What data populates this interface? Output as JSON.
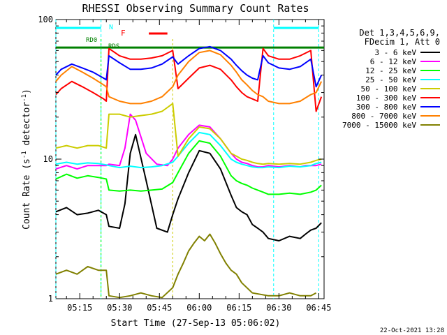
{
  "chart_data": {
    "type": "line",
    "title": "RHESSI Observing Summary Count Rates",
    "xlabel": "Start Time (27-Sep-13 05:06:02)",
    "ylabel": "Count Rate (s⁻¹ detector⁻¹)",
    "ylabel_parts": [
      "Count Rate (s",
      "-1",
      " detector",
      "-1",
      ")"
    ],
    "yscale": "log",
    "ylim": [
      1,
      100
    ],
    "y_ticks": [
      {
        "v": 1,
        "label": "1"
      },
      {
        "v": 10,
        "label": "10"
      },
      {
        "v": 100,
        "label": "100"
      }
    ],
    "x_ticks": [
      "05:15",
      "05:30",
      "05:45",
      "06:00",
      "06:15",
      "06:30",
      "06:45"
    ],
    "x_tick_minutes": [
      15,
      30,
      45,
      60,
      75,
      90,
      105
    ],
    "xlim_minutes": [
      6,
      107
    ],
    "grid": false,
    "legend_position": "right",
    "legend_header": [
      "Det 1,3,4,5,6,9,",
      "FDecim 1, Att 0"
    ],
    "series": [
      {
        "name": "3 - 6 keV",
        "color": "#000000",
        "x": [
          6,
          10,
          14,
          18,
          22,
          25,
          26,
          30,
          32,
          34,
          36,
          40,
          44,
          48,
          50,
          52,
          56,
          60,
          64,
          68,
          72,
          74,
          76,
          78,
          80,
          82,
          84,
          86,
          90,
          94,
          98,
          100,
          102,
          104,
          106
        ],
        "y": [
          4.2,
          4.5,
          4.0,
          4.1,
          4.3,
          4.0,
          3.3,
          3.2,
          4.8,
          11,
          15,
          7,
          3.2,
          3.0,
          4.0,
          5.2,
          8.0,
          11.5,
          11.0,
          8.5,
          5.5,
          4.5,
          4.2,
          4.0,
          3.4,
          3.2,
          3.0,
          2.7,
          2.6,
          2.8,
          2.7,
          2.9,
          3.1,
          3.2,
          3.5
        ]
      },
      {
        "name": "6 - 12 keV",
        "color": "#ff00ff",
        "x": [
          6,
          10,
          14,
          18,
          22,
          25,
          26,
          30,
          32,
          34,
          36,
          40,
          44,
          48,
          50,
          52,
          56,
          60,
          64,
          68,
          72,
          74,
          76,
          78,
          80,
          82,
          84,
          86,
          90,
          94,
          98,
          100,
          102,
          104,
          106
        ],
        "y": [
          8.5,
          9.0,
          8.5,
          9.0,
          9.0,
          9.0,
          9.2,
          9.0,
          12,
          21,
          19,
          11,
          9.2,
          9.0,
          10,
          12,
          15,
          17.5,
          17,
          14,
          11,
          10,
          9.5,
          9.3,
          9.0,
          8.8,
          8.8,
          9.0,
          8.8,
          9.0,
          8.8,
          9.0,
          9.0,
          9.0,
          9.2
        ]
      },
      {
        "name": "12 - 25 keV",
        "color": "#00ff00",
        "x": [
          6,
          10,
          14,
          18,
          22,
          25,
          26,
          30,
          34,
          38,
          42,
          46,
          50,
          52,
          56,
          60,
          64,
          68,
          72,
          74,
          76,
          78,
          80,
          82,
          84,
          86,
          90,
          94,
          98,
          102,
          104,
          106
        ],
        "y": [
          7.2,
          7.8,
          7.3,
          7.6,
          7.4,
          7.2,
          6.0,
          5.9,
          6.0,
          5.9,
          6.0,
          6.1,
          6.8,
          8.0,
          11,
          13.5,
          13,
          10.5,
          7.6,
          7.0,
          6.7,
          6.5,
          6.2,
          6.0,
          5.8,
          5.6,
          5.6,
          5.7,
          5.6,
          5.8,
          6.0,
          6.5
        ]
      },
      {
        "name": "25 - 50 keV",
        "color": "#00ffff",
        "x": [
          6,
          10,
          14,
          18,
          22,
          25,
          26,
          30,
          34,
          38,
          42,
          46,
          50,
          52,
          56,
          60,
          64,
          68,
          72,
          74,
          76,
          78,
          80,
          82,
          84,
          86,
          90,
          94,
          98,
          102,
          104,
          106
        ],
        "y": [
          9.2,
          9.5,
          9.2,
          9.4,
          9.3,
          9.1,
          9.0,
          8.7,
          8.9,
          8.7,
          8.8,
          9.0,
          9.5,
          10.5,
          13,
          15.5,
          15,
          12.5,
          10,
          9.5,
          9.2,
          9.0,
          8.8,
          8.7,
          8.7,
          8.8,
          8.7,
          8.9,
          8.8,
          9.0,
          9.3,
          9.5
        ]
      },
      {
        "name": "50 - 100 keV",
        "color": "#cccc00",
        "x": [
          6,
          10,
          14,
          18,
          22,
          25,
          26,
          30,
          34,
          38,
          42,
          46,
          50,
          52,
          56,
          60,
          64,
          68,
          72,
          74,
          76,
          78,
          80,
          82,
          84,
          86,
          90,
          94,
          98,
          102,
          104,
          106
        ],
        "y": [
          12,
          12.5,
          12,
          12.5,
          12.5,
          12,
          21,
          21,
          20,
          20.5,
          21,
          22,
          25,
          10.5,
          14,
          17,
          16.5,
          14,
          11,
          10.5,
          10,
          9.8,
          9.5,
          9.3,
          9.2,
          9.3,
          9.2,
          9.3,
          9.2,
          9.5,
          9.8,
          10
        ]
      },
      {
        "name": "100 - 300 keV",
        "color": "#ff0000",
        "x": [
          6,
          8,
          12,
          16,
          20,
          24,
          25,
          26,
          30,
          34,
          38,
          42,
          46,
          50,
          52,
          56,
          60,
          64,
          68,
          72,
          74,
          76,
          78,
          80,
          82,
          84,
          86,
          90,
          94,
          98,
          102,
          104,
          106
        ],
        "y": [
          29,
          32,
          36,
          33,
          30,
          27,
          26,
          62,
          55,
          52,
          52,
          53,
          55,
          60,
          32,
          38,
          45,
          47,
          44,
          37,
          33,
          30,
          28,
          27,
          26,
          62,
          55,
          52,
          52,
          55,
          60,
          22,
          28
        ]
      },
      {
        "name": "300 - 800 keV",
        "color": "#0000ff",
        "x": [
          6,
          8,
          12,
          16,
          20,
          24,
          25,
          26,
          30,
          34,
          38,
          42,
          46,
          50,
          52,
          56,
          60,
          64,
          68,
          72,
          74,
          76,
          78,
          80,
          82,
          84,
          86,
          90,
          94,
          98,
          102,
          104,
          106
        ],
        "y": [
          40,
          44,
          48,
          45,
          42,
          38,
          37,
          55,
          49,
          44,
          44,
          45,
          48,
          54,
          48,
          55,
          62,
          64,
          60,
          52,
          47,
          43,
          40,
          38,
          37,
          55,
          49,
          45,
          44,
          46,
          52,
          33,
          40
        ]
      },
      {
        "name": "800 - 7000 keV",
        "color": "#ff8000",
        "x": [
          6,
          8,
          12,
          16,
          20,
          24,
          25,
          26,
          30,
          34,
          38,
          42,
          46,
          50,
          52,
          56,
          60,
          64,
          68,
          72,
          74,
          76,
          78,
          80,
          82,
          84,
          86,
          90,
          94,
          98,
          102,
          104,
          106
        ],
        "y": [
          36,
          40,
          46,
          42,
          38,
          34,
          33,
          28,
          26,
          25,
          25,
          26,
          28,
          33,
          40,
          50,
          58,
          60,
          56,
          47,
          42,
          37,
          34,
          31,
          29,
          28,
          26,
          25,
          25,
          26,
          29,
          30,
          36
        ]
      },
      {
        "name": "7000 - 15000 keV",
        "color": "#808000",
        "x": [
          6,
          10,
          14,
          18,
          22,
          25,
          26,
          30,
          34,
          38,
          42,
          46,
          50,
          52,
          54,
          56,
          58,
          60,
          62,
          64,
          66,
          68,
          70,
          72,
          74,
          76,
          80,
          86,
          90,
          94,
          98,
          102,
          104
        ],
        "y": [
          1.5,
          1.6,
          1.5,
          1.7,
          1.6,
          1.6,
          1.05,
          1.02,
          1.05,
          1.1,
          1.05,
          1.02,
          1.2,
          1.5,
          1.8,
          2.2,
          2.5,
          2.8,
          2.6,
          2.9,
          2.5,
          2.1,
          1.8,
          1.6,
          1.5,
          1.3,
          1.1,
          1.05,
          1.05,
          1.1,
          1.05,
          1.05,
          1.1
        ]
      }
    ],
    "annotations": [
      {
        "label": "N",
        "color": "#00ffff"
      },
      {
        "label": "F",
        "color": "#ff0000"
      },
      {
        "label": "RD0",
        "color": "#008000"
      },
      {
        "label": "RDS",
        "color": "#008000"
      }
    ],
    "flags": {
      "night": {
        "color": "#00ffff",
        "intervals": [
          [
            6,
            23
          ],
          [
            88,
            105
          ]
        ]
      },
      "flare": {
        "color": "#ff0000",
        "intervals": [
          [
            41,
            48
          ]
        ]
      },
      "saa_level": {
        "color": "#008000",
        "value": 63
      },
      "rds_window": {
        "color": "#008000",
        "intervals": [
          [
            23,
            50
          ]
        ]
      }
    },
    "footer_stamp": "22-Oct-2021 13:28"
  }
}
